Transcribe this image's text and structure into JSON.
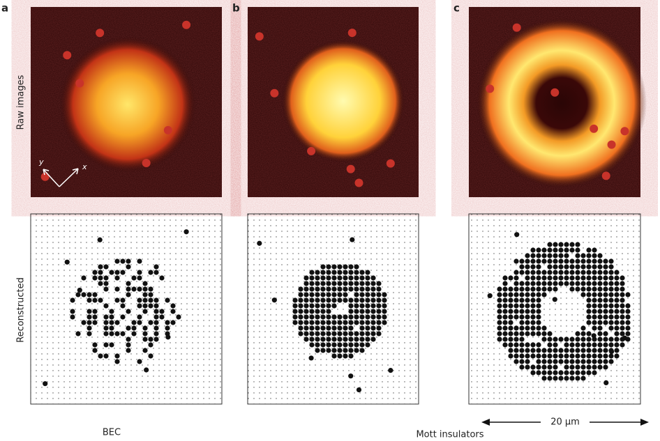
{
  "panels": [
    {
      "label": "a"
    },
    {
      "label": "b"
    },
    {
      "label": "c"
    }
  ],
  "row_labels": [
    "Raw images",
    "Reconstructed"
  ],
  "axes": {
    "x": "x",
    "y": "y"
  },
  "captions": [
    "BEC",
    "Mott insulators"
  ],
  "scale_bar": "20 μm"
}
